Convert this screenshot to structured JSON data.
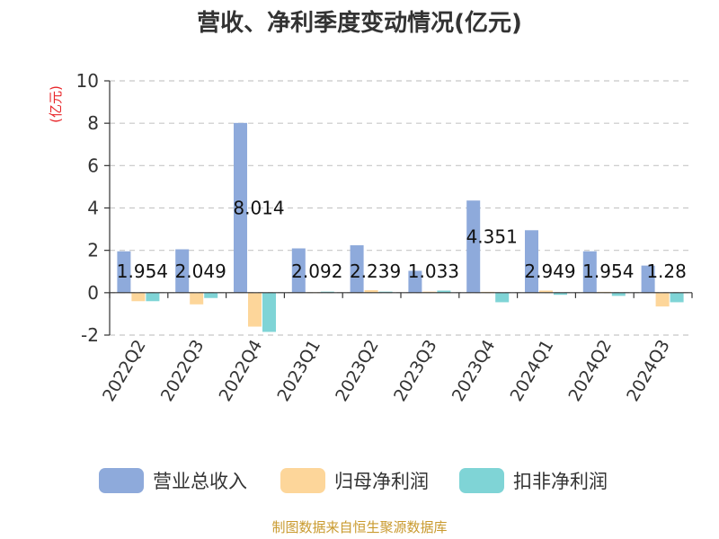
{
  "chart_data": {
    "type": "bar",
    "title": "营收、净利季度变动情况(亿元)",
    "ylabel": "(亿元)",
    "ylim": [
      -2,
      10
    ],
    "yticks": [
      -2,
      0,
      2,
      4,
      6,
      8,
      10
    ],
    "grid": true,
    "legend_position": "bottom",
    "categories": [
      "2022Q2",
      "2022Q3",
      "2022Q4",
      "2023Q1",
      "2023Q2",
      "2023Q3",
      "2023Q4",
      "2024Q1",
      "2024Q2",
      "2024Q3"
    ],
    "series": [
      {
        "name": "营业总收入",
        "color": "#8eaadb",
        "values": [
          1.954,
          2.049,
          8.014,
          2.092,
          2.239,
          1.033,
          4.351,
          2.949,
          1.954,
          1.28
        ],
        "labels": [
          "1.954",
          "2.049",
          "8.014",
          "2.092",
          "2.239",
          "1.033",
          "4.351",
          "2.949",
          "1.954",
          "1.28"
        ]
      },
      {
        "name": "归母净利润",
        "color": "#fdd69a",
        "values": [
          -0.4,
          -0.55,
          -1.6,
          0.02,
          0.12,
          0.05,
          0.04,
          0.1,
          0.04,
          -0.65
        ]
      },
      {
        "name": "扣非净利润",
        "color": "#7fd4d6",
        "values": [
          -0.4,
          -0.25,
          -1.85,
          0.05,
          0.05,
          0.1,
          -0.45,
          -0.1,
          -0.15,
          -0.45
        ]
      }
    ]
  },
  "source": "制图数据来自恒生聚源数据库"
}
